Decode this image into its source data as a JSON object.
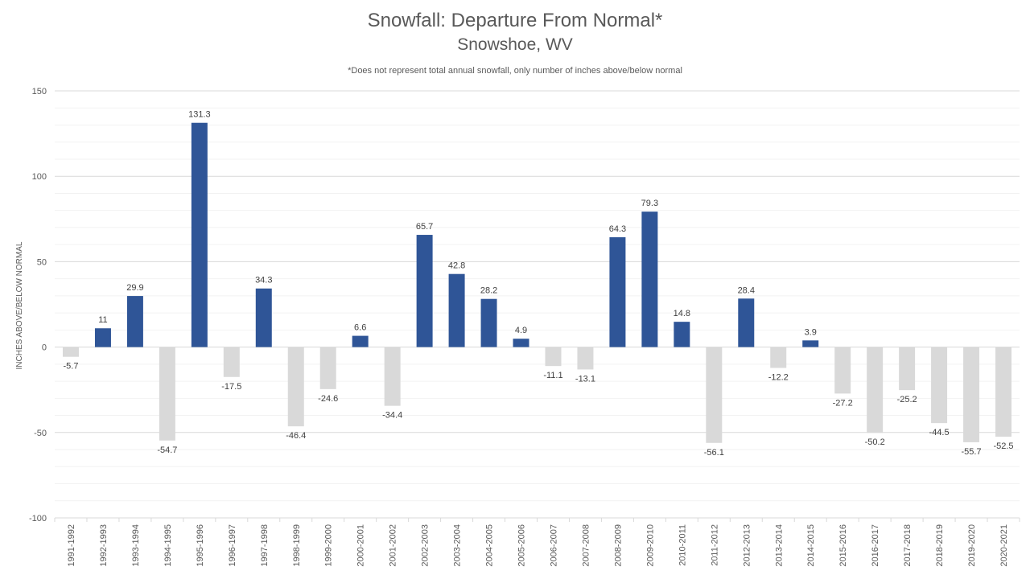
{
  "chart_data": {
    "type": "bar",
    "title": "Snowfall: Departure From Normal*",
    "subtitle": "Snowshoe, WV",
    "note": "*Does not represent  total annual snowfall, only number of inches above/below normal",
    "xlabel": "",
    "ylabel": "INCHES ABOVE/BELOW NORMAL",
    "ylim": [
      -100,
      150
    ],
    "yticks": [
      150,
      100,
      50,
      0,
      -50,
      -100
    ],
    "grid": true,
    "legend": "none",
    "positive_color": "#2F5597",
    "negative_color": "#D9D9D9",
    "categories": [
      "1991-1992",
      "1992-1993",
      "1993-1994",
      "1994-1995",
      "1995-1996",
      "1996-1997",
      "1997-1998",
      "1998-1999",
      "1999-2000",
      "2000-2001",
      "2001-2002",
      "2002-2003",
      "2003-2004",
      "2004-2005",
      "2005-2006",
      "2006-2007",
      "2007-2008",
      "2008-2009",
      "2009-2010",
      "2010-2011",
      "2011-2012",
      "2012-2013",
      "2013-2014",
      "2014-2015",
      "2015-2016",
      "2016-2017",
      "2017-2018",
      "2018-2019",
      "2019-2020",
      "2020-2021"
    ],
    "values": [
      -5.7,
      11,
      29.9,
      -54.7,
      131.3,
      -17.5,
      34.3,
      -46.4,
      -24.6,
      6.6,
      -34.4,
      65.7,
      42.8,
      28.2,
      4.9,
      -11.1,
      -13.1,
      64.3,
      79.3,
      14.8,
      -56.1,
      28.4,
      -12.2,
      3.9,
      -27.2,
      -50.2,
      -25.2,
      -44.5,
      -55.7,
      -52.5
    ],
    "data_labels": [
      "-5.7",
      "11",
      "29.9",
      "-54.7",
      "131.3",
      "-17.5",
      "34.3",
      "-46.4",
      "-24.6",
      "6.6",
      "-34.4",
      "65.7",
      "42.8",
      "28.2",
      "4.9",
      "-11.1",
      "-13.1",
      "64.3",
      "79.3",
      "14.8",
      "-56.1",
      "28.4",
      "-12.2",
      "3.9",
      "-27.2",
      "-50.2",
      "-25.2",
      "-44.5",
      "-55.7",
      "-52.5"
    ]
  }
}
